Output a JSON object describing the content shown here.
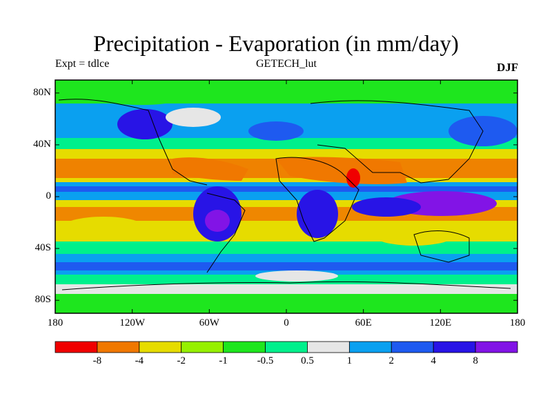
{
  "title": "Precipitation - Evaporation (in mm/day)",
  "experiment": "Expt = tdlce",
  "dataset": "GETECH_lut",
  "season": "DJF",
  "map": {
    "projection": "cylindrical-equidistant",
    "lon_range": [
      -180,
      180
    ],
    "lat_range": [
      -90,
      90
    ],
    "lat_ticks": [
      {
        "value": 80,
        "label": "80N"
      },
      {
        "value": 40,
        "label": "40N"
      },
      {
        "value": 0,
        "label": "0"
      },
      {
        "value": -40,
        "label": "40S"
      },
      {
        "value": -80,
        "label": "80S"
      }
    ],
    "lon_ticks": [
      {
        "value": -180,
        "label": "180"
      },
      {
        "value": -120,
        "label": "120W"
      },
      {
        "value": -60,
        "label": "60W"
      },
      {
        "value": 0,
        "label": "0"
      },
      {
        "value": 60,
        "label": "60E"
      },
      {
        "value": 120,
        "label": "120E"
      },
      {
        "value": 180,
        "label": "180"
      }
    ]
  },
  "colorbar": {
    "colors": [
      "#f00000",
      "#f07800",
      "#e6dc00",
      "#96f000",
      "#1ee61e",
      "#00f08c",
      "#e6e6e6",
      "#0aa0f0",
      "#1e5af0",
      "#2814e6",
      "#8214e6"
    ],
    "labels": [
      "-8",
      "-4",
      "-2",
      "-1",
      "-0.5",
      "0.5",
      "1",
      "2",
      "4",
      "8"
    ]
  }
}
